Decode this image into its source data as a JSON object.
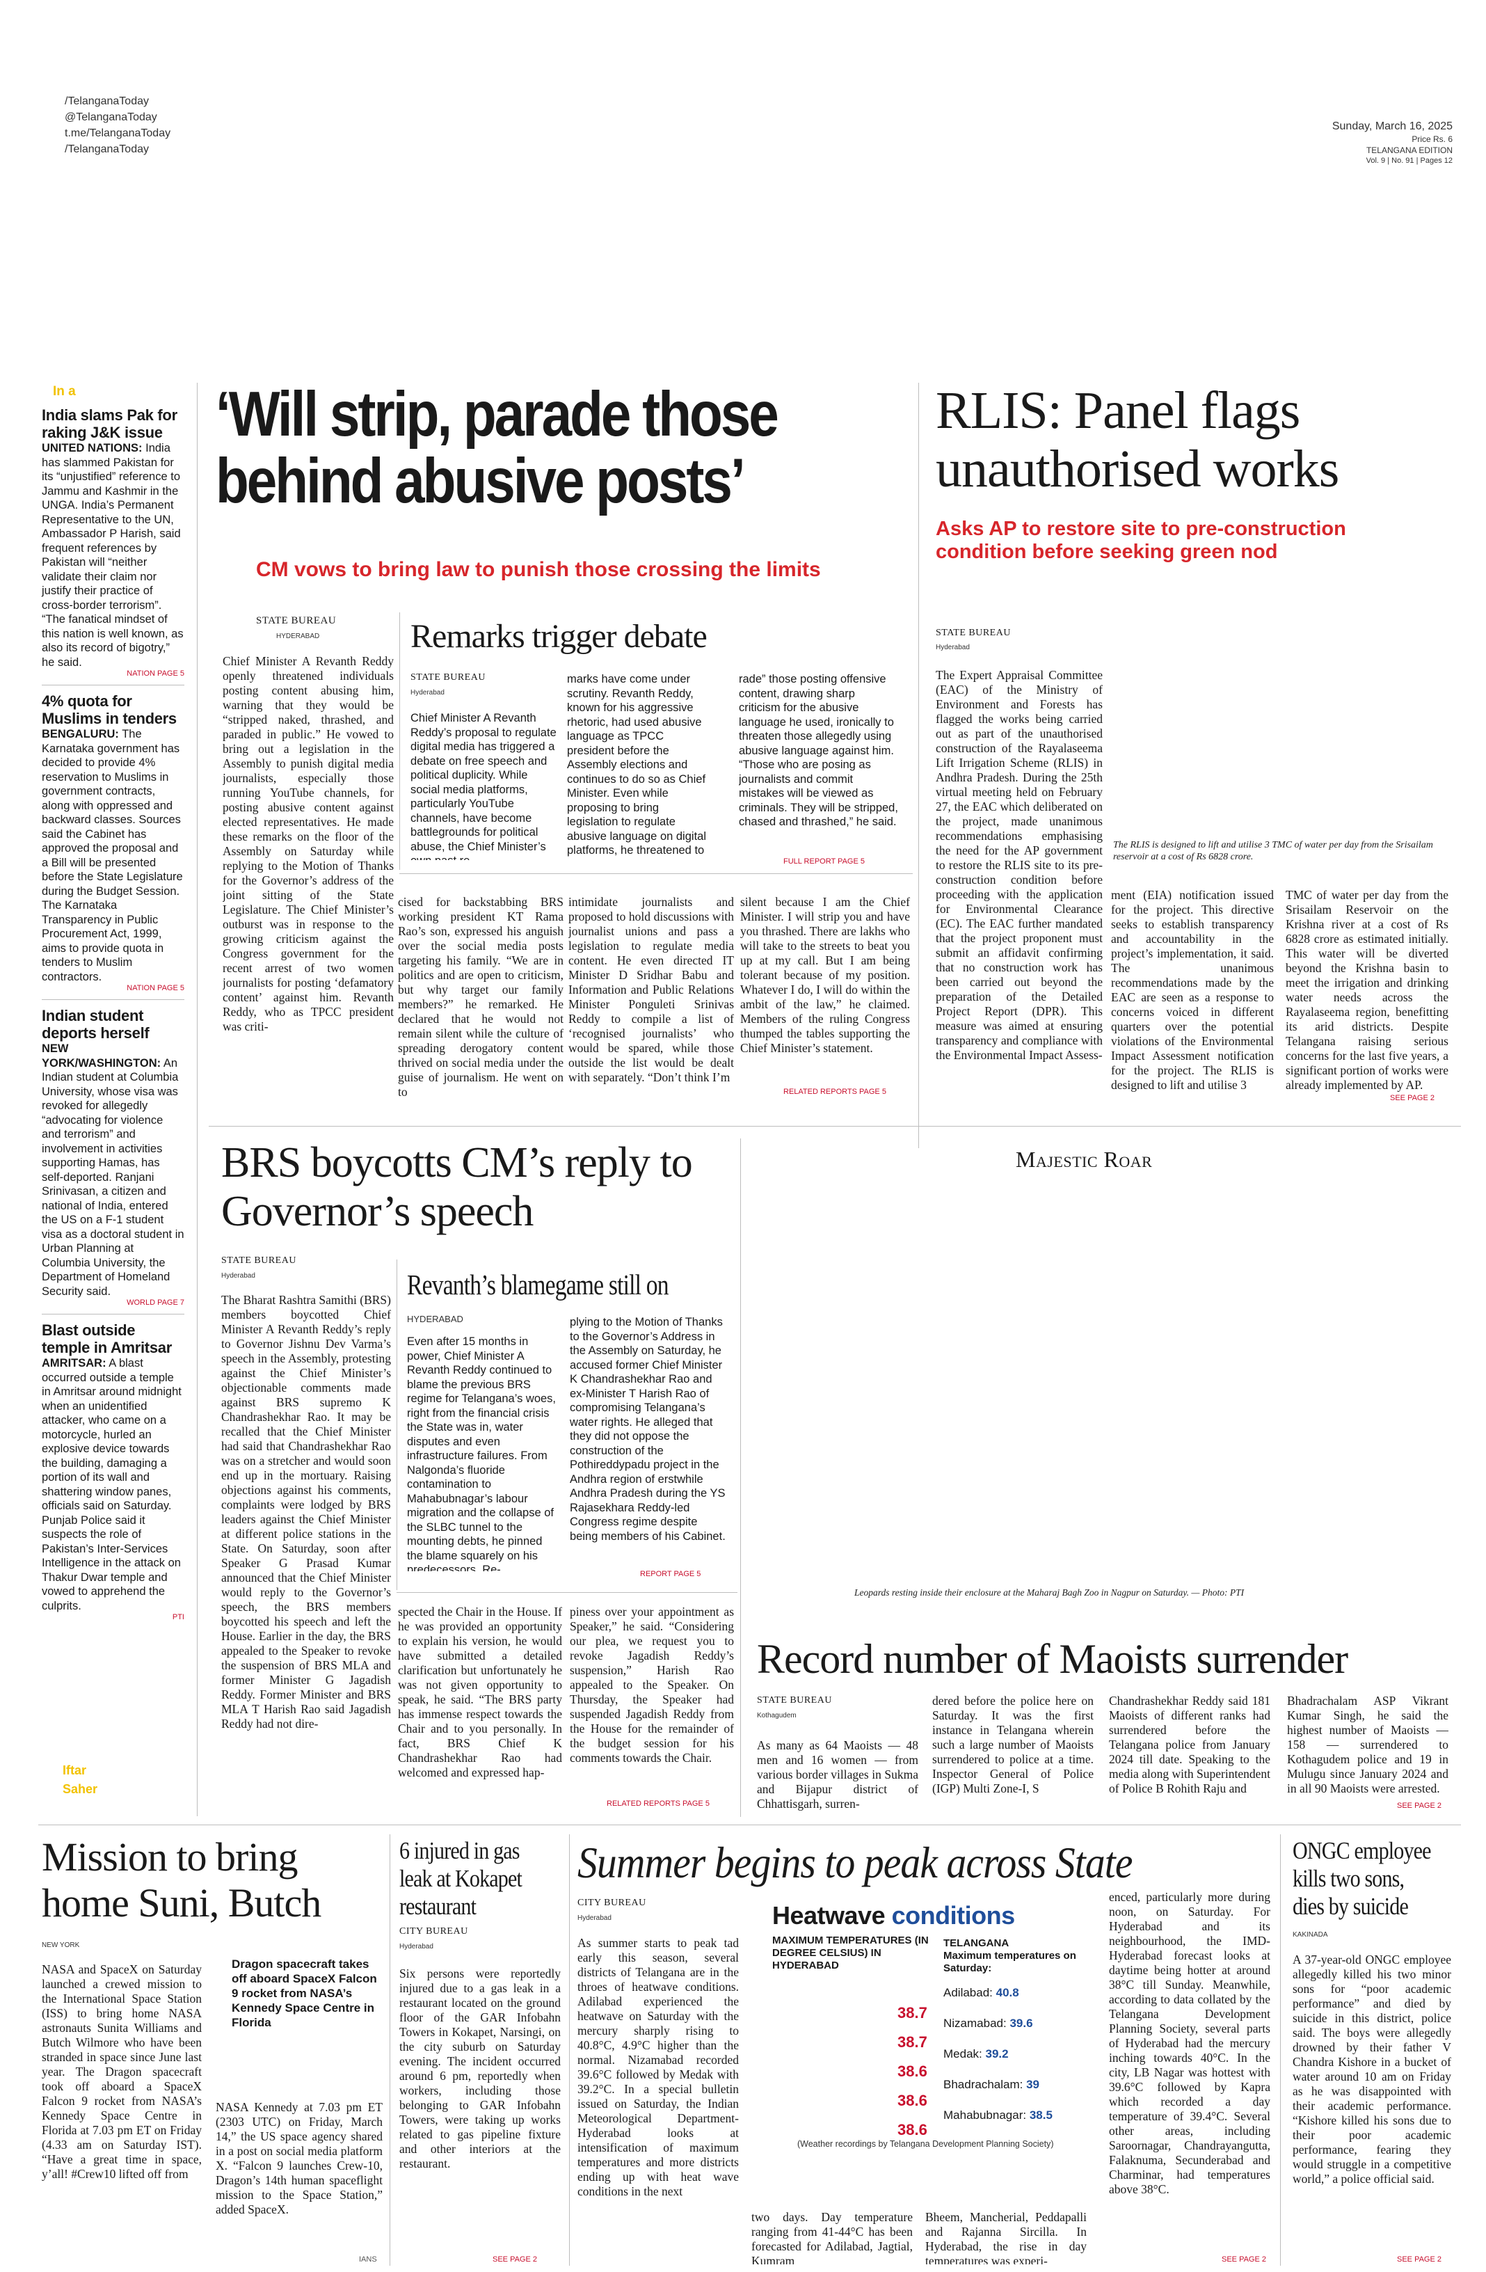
{
  "masthead": {
    "social": [
      "/TelanganaToday",
      "@TelanganaToday",
      "t.me/TelanganaToday",
      "/TelanganaToday"
    ],
    "date": "Sunday, March 16, 2025",
    "price": "Price Rs. 6",
    "edition": "TELANGANA EDITION",
    "volume": "Vol. 9 | No. 91 | Pages 12"
  },
  "sidebar": {
    "section_label": "In a",
    "briefs": [
      {
        "headline": "India slams Pak for raking J&K issue",
        "dateline": "UNITED NATIONS:",
        "body": "India has slammed Pakistan for its “unjustified” reference to Jammu and Kashmir in the UNGA. India’s Permanent Representative to the UN, Ambassador P Harish, said frequent references by Pakistan will “neither validate their claim nor justify their practice of cross-border terrorism”. “The fanatical mindset of this nation is well known, as also its record of bigotry,” he said.",
        "jump": "NATION PAGE 5"
      },
      {
        "headline": "4% quota for Muslims in tenders",
        "dateline": "BENGALURU:",
        "body": "The Karnataka government has decided to provide 4% reservation to Muslims in government contracts, along with oppressed and backward classes. Sources said the Cabinet has approved the proposal and a Bill will be presented before the State Legislature during the Budget Session. The Karnataka Transparency in Public Procurement Act, 1999, aims to provide quota in tenders to Muslim contractors.",
        "jump": "NATION PAGE 5"
      },
      {
        "headline": "Indian student deports herself",
        "dateline": "NEW YORK/WASHINGTON:",
        "body": "An Indian student at Columbia University, whose visa was revoked for allegedly “advocating for violence and terrorism” and involvement in activities supporting Hamas, has self-deported. Ranjani Srinivasan, a citizen and national of India, entered the US on a F-1 student visa as a doctoral student in Urban Planning at Columbia University, the Department of Homeland Security said.",
        "jump": "WORLD PAGE 7"
      },
      {
        "headline": "Blast outside temple in Amritsar",
        "dateline": "AMRITSAR:",
        "body": "A blast occurred outside a temple in Amritsar around midnight when an unidentified attacker, who came on a motorcycle, hurled an explosive device towards the building, damaging a portion of its wall and shattering window panes, officials said on Saturday. Punjab Police said it suspects the role of Pakistan’s Inter-Services Intelligence in the attack on Thakur Dwar temple and vowed to apprehend the culprits.",
        "jump": "PTI"
      }
    ],
    "iftar_label": "Iftar",
    "sahar_label": "Saher"
  },
  "lead": {
    "headline": "‘Will strip, parade those behind abusive posts’",
    "deck": "CM vows to bring law to punish those crossing the limits",
    "byline": "STATE BUREAU",
    "dateline": "HYDERABAD",
    "body_col1": "Chief Minister A Revanth Reddy openly threatened individuals posting content abusing him, warning that they would be “stripped naked, thrashed, and paraded in public.” He vowed to bring out a legislation in the Assembly to punish digital media journalists, especially those running YouTube channels, for posting abusive content against elected representatives. He made these remarks on the floor of the Assembly on Saturday while replying to the Motion of Thanks for the Governor’s address of the joint sitting of the State Legislature. The Chief Minister’s outburst was in response to the growing criticism against the Congress government for the recent arrest of two women journalists for posting ‘defamatory content’ against him. Revanth Reddy, who as TPCC president was criti-",
    "body_col2": "cised for backstabbing BRS working president KT Rama Rao’s son, expressed his anguish over the social media posts targeting his family. “We are in politics and are open to criticism, but why target our family members?” he remarked. He declared that he would not remain silent while the culture of spreading derogatory content thrived on social media under the guise of journalism. He went on to",
    "body_col3": "intimidate journalists and proposed to hold discussions with journalist unions and pass a legislation to regulate media content. He even directed IT Minister D Sridhar Babu and Information and Public Relations Minister Ponguleti Srinivas Reddy to compile a list of ‘recognised journalists’ who would be spared, while those outside the list would be dealt with separately. “Don’t think I’m",
    "body_col4": "silent because I am the Chief Minister. I will strip you and have you thrashed. There are lakhs who will take to the streets to beat you up at my call. But I am being tolerant because of my position. Whatever I do, I will do within the ambit of the law,” he claimed. Members of the ruling Congress thumped the tables supporting the Chief Minister’s statement.",
    "jump": "RELATED REPORTS PAGE 5"
  },
  "sidebar_story": {
    "headline": "Remarks trigger debate",
    "byline": "STATE BUREAU",
    "dateline": "Hyderabad",
    "col1": "Chief Minister A Revanth Reddy’s proposal to regulate digital media has triggered a debate on free speech and political duplicity. While social media platforms, particularly YouTube channels, have become battlegrounds for political abuse, the Chief Minister’s own past re-",
    "col2": "marks have come under scrutiny. Revanth Reddy, known for his aggressive rhetoric, had used abusive language as TPCC president before the Assembly elections and continues to do so as Chief Minister. Even while proposing to bring legislation to regulate abusive language on digital platforms, he threatened to “strip, thrash, and pa-",
    "col3": "rade” those posting offensive content, drawing sharp criticism for the abusive language he used, ironically to threaten those allegedly using abusive language against him. “Those who are posing as journalists and commit mistakes will be viewed as criminals. They will be stripped, chased and thrashed,” he said.",
    "jump": "FULL REPORT PAGE 5"
  },
  "rlis": {
    "headline": "RLIS: Panel flags unauthorised works",
    "deck": "Asks AP to restore site to pre-construction condition before seeking green nod",
    "byline": "STATE BUREAU",
    "dateline": "Hyderabad",
    "col1": "The Expert Appraisal Committee (EAC) of the Ministry of Environment and Forests has flagged the works being carried out as part of the unauthorised construction of the Rayalaseema Lift Irrigation Scheme (RLIS) in Andhra Pradesh. During the 25th virtual meeting held on February 27, the EAC which deliberated on the project, made unanimous recommendations emphasising the need for the AP government to restore the RLIS site to its pre-construction condition before proceeding with the application for Environmental Clearance (EC). The EAC further mandated that the project proponent must submit an affidavit confirming that no construction work has been carried out beyond the preparation of the Detailed Project Report (DPR). This measure was aimed at ensuring transparency and compliance with the Environmental Impact Assess-",
    "col2": "ment (EIA) notification issued for the project. This directive seeks to establish transparency and accountability in the project’s implementation, it said. The unanimous recommendations made by the EAC are seen as a response to concerns voiced in different quarters over the potential violations of the Environmental Impact Assessment notification for the project. The RLIS is designed to lift and utilise 3",
    "col3": "TMC of water per day from the Srisailam Reservoir on the Krishna river at a cost of Rs 6828 crore as estimated initially. This water will be diverted beyond the Krishna basin to meet the irrigation and drinking water needs across the Rayalaseema region, benefitting its arid districts. Despite Telangana raising serious concerns for the last five years, a significant portion of works were already implemented by AP.",
    "jump": "SEE PAGE 2",
    "photo_caption": "The RLIS is designed to lift and utilise 3 TMC of water per day from the Srisailam reservoir at a cost of Rs 6828 crore."
  },
  "brs": {
    "headline": "BRS boycotts CM’s reply to Governor’s speech",
    "byline": "STATE BUREAU",
    "dateline": "Hyderabad",
    "col1": "The Bharat Rashtra Samithi (BRS) members boycotted Chief Minister A Revanth Reddy’s reply to Governor Jishnu Dev Varma’s speech in the Assembly, protesting against the Chief Minister’s objectionable comments made against BRS supremo K Chandrashekhar Rao. It may be recalled that the Chief Minister had said that Chandrashekhar Rao was on a stretcher and would soon end up in the mortuary. Raising objections against his comments, complaints were lodged by BRS leaders against the Chief Minister at different police stations in the State. On Saturday, soon after Speaker G Prasad Kumar announced that the Chief Minister would reply to the Governor’s speech, the BRS members boycotted his speech and left the House. Earlier in the day, the BRS appealed to the Speaker to revoke the suspension of BRS MLA and former Minister G Jagadish Reddy. Former Minister and BRS MLA T Harish Rao said Jagadish Reddy had not dire-",
    "col2": "spected the Chair in the House. If he was provided an opportunity to explain his version, he would have submitted a detailed clarification but unfortunately he was not given opportunity to speak, he said. “The BRS party has immense respect towards the Chair and to you personally. In fact, BRS Chief K Chandrashekhar Rao had welcomed and expressed hap-",
    "col3": "piness over your appointment as Speaker,” he said. “Considering our plea, we request you to revoke Jagadish Reddy’s suspension,” Harish Rao appealed to the Speaker. On Thursday, the Speaker had suspended Jagadish Reddy from the House for the remainder of the budget session for his comments towards the Chair.",
    "jump": "RELATED REPORTS PAGE 5",
    "side_headline": "Revanth’s blamegame still on",
    "side_dateline": "HYDERABAD",
    "side_col1": "Even after 15 months in power, Chief Minister A Revanth Reddy continued to blame the previous BRS regime for Telangana’s woes, right from the financial crisis the State was in, water disputes and even infrastructure failures. From Nalgonda’s fluoride contamination to Mahabubnagar’s labour migration and the collapse of the SLBC tunnel to the mounting debts, he pinned the blame squarely on his predecessors. Re-",
    "side_col2": "plying to the Motion of Thanks to the Governor’s Address in the Assembly on Saturday, he accused former Chief Minister K Chandrashekhar Rao and ex-Minister T Harish Rao of compromising Telangana’s water rights. He alleged that they did not oppose the construction of the Pothireddypadu project in the Andhra region of erstwhile Andhra Pradesh during the YS Rajasekhara Reddy-led Congress regime despite being members of his Cabinet.",
    "side_jump": "REPORT PAGE 5"
  },
  "majestic": {
    "label": "Majestic Roar",
    "caption": "Leopards resting inside their enclosure at the Maharaj Bagh Zoo in Nagpur on Saturday. — Photo: PTI"
  },
  "maoists": {
    "headline": "Record number of Maoists surrender",
    "byline": "STATE BUREAU",
    "dateline": "Kothagudem",
    "col1": "As many as 64 Maoists — 48 men and 16 women — from various border villages in Sukma and Bijapur district of Chhattisgarh, surren-",
    "col2": "dered before the police here on Saturday. It was the first instance in Telangana wherein such a large number of Maoists surrendered to police at a time. Inspector General of Police (IGP) Multi Zone-I, S",
    "col3": "Chandrashekhar Reddy said 181 Maoists of different ranks had surrendered before the Telangana police from January 2024 till date. Speaking to the media along with Superintendent of Police B Rohith Raju and",
    "col4": "Bhadrachalam ASP Vikrant Kumar Singh, he said the highest number of Maoists — 158 — surrendered to Kothagudem police and 19 in Mulugu since January 2024 and in all 90 Maoists were arrested.",
    "jump": "SEE PAGE 2"
  },
  "suni": {
    "headline": "Mission to bring home Suni, Butch",
    "dateline": "NEW YORK",
    "col1": "NASA and SpaceX on Saturday launched a crewed mission to the International Space Station (ISS) to bring home NASA astronauts Sunita Williams and Butch Wilmore who have been stranded in space since June last year. The Dragon spacecraft took off aboard a SpaceX Falcon 9 rocket from NASA’s Kennedy Space Centre in Florida at 7.03 pm ET on Friday (4.33 am on Saturday IST). “Have a great time in space, y’all! #Crew10 lifted off from",
    "photo_caption": "Dragon spacecraft takes off aboard SpaceX Falcon 9 rocket from NASA’s Kennedy Space Centre in Florida",
    "col2": "NASA Kennedy at 7.03 pm ET (2303 UTC) on Friday, March 14,” the US space agency shared in a post on social media platform X. “Falcon 9 launches Crew-10, Dragon’s 14th human spaceflight mission to the Space Station,” added SpaceX.",
    "jump": "IANS"
  },
  "kokapet": {
    "headline": "6 injured in gas leak at Kokapet restaurant",
    "byline": "CITY BUREAU",
    "dateline": "Hyderabad",
    "body": "Six persons were reportedly injured due to a gas leak in a restaurant located on the ground floor of the GAR Infobahn Towers in Kokapet, Narsingi, on the city suburb on Saturday evening. The incident occurred around 6 pm, reportedly when workers, including those belonging to GAR Infobahn Towers, were taking up works related to gas pipeline fixture and other interiors at the restaurant.",
    "jump": "SEE PAGE 2"
  },
  "summer": {
    "headline": "Summer begins to peak across State",
    "byline": "CITY BUREAU",
    "dateline": "Hyderabad",
    "col1": "As summer starts to peak tad early this season, several districts of Telangana are in the throes of heatwave conditions. Adilabad experienced the heatwave on Saturday with the mercury sharply rising to 40.8°C, 4.9°C higher than the normal. Nizamabad recorded 39.6°C followed by Medak with 39.2°C. In a special bulletin issued on Saturday, the Indian Meteorological Department-Hyderabad looks at intensification of maximum temperatures and more districts ending up with heat wave conditions in the next",
    "col2": "two days. Day temperature ranging from 41-44°C has been forecasted for Adilabad, Jagtial, Kumram",
    "col3": "Bheem, Mancherial, Peddapalli and Rajanna Sircilla. In Hyderabad, the rise in day temperatures was experi-",
    "col4": "enced, particularly more during noon, on Saturday. For Hyderabad and its neighbourhood, the IMD-Hyderabad forecast looks at daytime being hotter at around 38°C till Sunday. Meanwhile, according to data collated by the Telangana Development Planning Society, several parts of Hyderabad had the mercury inching towards 40°C. In the city, LB Nagar was hottest with 39.6°C followed by Kapra which recorded a day temperature of 39.4°C. Several other areas, including Saroornagar, Chandrayangutta, Falaknuma, Secunderabad and Charminar, had temperatures above 38°C.",
    "jump": "SEE PAGE 2",
    "graphic": {
      "title_a": "Heatwave",
      "title_b": "conditions",
      "hyd_heading": "MAXIMUM TEMPERATURES (IN DEGREE CELSIUS) IN HYDERABAD",
      "hyd_values": [
        "38.7",
        "38.7",
        "38.6",
        "38.6",
        "38.6"
      ],
      "tg_heading_a": "TELANGANA",
      "tg_heading_b": "Maximum temperatures on Saturday:",
      "tg_rows": [
        {
          "place": "Adilabad:",
          "value": "40.8"
        },
        {
          "place": "Nizamabad:",
          "value": "39.6"
        },
        {
          "place": "Medak:",
          "value": "39.2"
        },
        {
          "place": "Bhadrachalam:",
          "value": "39"
        },
        {
          "place": "Mahabubnagar:",
          "value": "38.5"
        }
      ],
      "footnote": "(Weather recordings by Telangana Development Planning Society)"
    }
  },
  "ongc": {
    "headline": "ONGC employee kills two sons, dies by suicide",
    "dateline": "KAKINADA",
    "body": "A 37-year-old ONGC employee allegedly killed his two minor sons for “poor academic performance” and died by suicide in this district, police said. The boys were allegedly drowned by their father V Chandra Kishore in a bucket of water around 10 am on Friday as he was disappointed with their academic performance. “Kishore killed his sons due to their poor academic performance, fearing they would struggle in a competitive world,” a police official said.",
    "jump": "SEE PAGE 2"
  },
  "colors": {
    "accent_red": "#d7262b",
    "brief_yellow": "#f2c200",
    "heat_blue": "#1f4e9a"
  }
}
